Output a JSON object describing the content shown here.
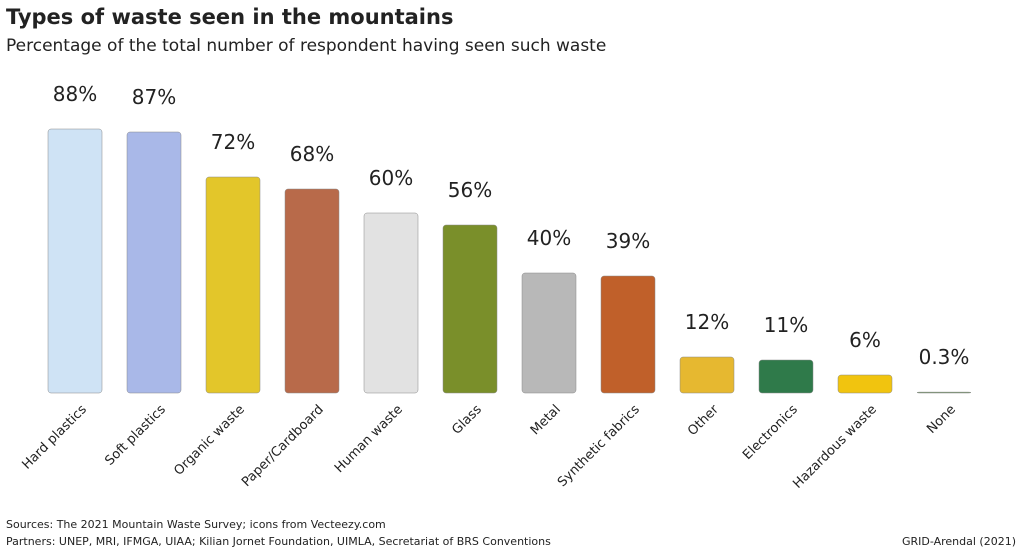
{
  "chart_data": {
    "type": "bar",
    "title": "Types of waste seen in the mountains",
    "subtitle": "Percentage of the total number of respondent having seen such waste",
    "categories": [
      "Hard plastics",
      "Soft plastics",
      "Organic waste",
      "Paper/Cardboard",
      "Human waste",
      "Glass",
      "Metal",
      "Synthetic fabrics",
      "Other",
      "Electronics",
      "Hazardous waste",
      "None"
    ],
    "values": [
      88,
      87,
      72,
      68,
      60,
      56,
      40,
      39,
      12,
      11,
      6,
      0.3
    ],
    "value_labels": [
      "88%",
      "87%",
      "72%",
      "68%",
      "60%",
      "56%",
      "40%",
      "39%",
      "12%",
      "11%",
      "6%",
      "0.3%"
    ],
    "colors": [
      "#cfe3f5",
      "#a9b8e8",
      "#e3c62a",
      "#b86a4a",
      "#e2e2e2",
      "#7a8f2a",
      "#b8b8b8",
      "#c0602a",
      "#e6b830",
      "#2f7a4a",
      "#f1c40f",
      "#6a9a5a"
    ],
    "notes": [
      "Sources: The 2021 Mountain Waste Survey; icons from Vecteezy.com",
      "Partners: UNEP, MRI, IFMGA, UIAA; Kilian Jornet Foundation, UIMLA, Secretariat of BRS Conventions"
    ],
    "credit": "GRID-Arendal (2021)"
  }
}
